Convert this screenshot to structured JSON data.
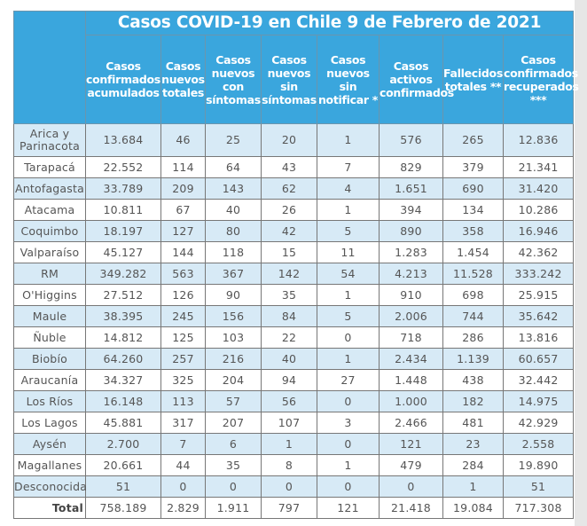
{
  "title": "Casos COVID-19 en Chile 9 de Febrero de 2021",
  "columns": [
    "Casos confirmados acumulados",
    "Casos nuevos totales",
    "Casos nuevos con síntomas",
    "Casos nuevos sin síntomas",
    "Casos nuevos sin notificar *",
    "Casos activos confirmados",
    "Fallecidos totales **",
    "Casos confirmados recuperados ***"
  ],
  "rows": [
    {
      "region": "Arica y Parinacota",
      "values": [
        "13.684",
        "46",
        "25",
        "20",
        "1",
        "576",
        "265",
        "12.836"
      ]
    },
    {
      "region": "Tarapacá",
      "values": [
        "22.552",
        "114",
        "64",
        "43",
        "7",
        "829",
        "379",
        "21.341"
      ]
    },
    {
      "region": "Antofagasta",
      "values": [
        "33.789",
        "209",
        "143",
        "62",
        "4",
        "1.651",
        "690",
        "31.420"
      ]
    },
    {
      "region": "Atacama",
      "values": [
        "10.811",
        "67",
        "40",
        "26",
        "1",
        "394",
        "134",
        "10.286"
      ]
    },
    {
      "region": "Coquimbo",
      "values": [
        "18.197",
        "127",
        "80",
        "42",
        "5",
        "890",
        "358",
        "16.946"
      ]
    },
    {
      "region": "Valparaíso",
      "values": [
        "45.127",
        "144",
        "118",
        "15",
        "11",
        "1.283",
        "1.454",
        "42.362"
      ]
    },
    {
      "region": "RM",
      "values": [
        "349.282",
        "563",
        "367",
        "142",
        "54",
        "4.213",
        "11.528",
        "333.242"
      ]
    },
    {
      "region": "O'Higgins",
      "values": [
        "27.512",
        "126",
        "90",
        "35",
        "1",
        "910",
        "698",
        "25.915"
      ]
    },
    {
      "region": "Maule",
      "values": [
        "38.395",
        "245",
        "156",
        "84",
        "5",
        "2.006",
        "744",
        "35.642"
      ]
    },
    {
      "region": "Ñuble",
      "values": [
        "14.812",
        "125",
        "103",
        "22",
        "0",
        "718",
        "286",
        "13.816"
      ]
    },
    {
      "region": "Biobío",
      "values": [
        "64.260",
        "257",
        "216",
        "40",
        "1",
        "2.434",
        "1.139",
        "60.657"
      ]
    },
    {
      "region": "Araucanía",
      "values": [
        "34.327",
        "325",
        "204",
        "94",
        "27",
        "1.448",
        "438",
        "32.442"
      ]
    },
    {
      "region": "Los Ríos",
      "values": [
        "16.148",
        "113",
        "57",
        "56",
        "0",
        "1.000",
        "182",
        "14.975"
      ]
    },
    {
      "region": "Los Lagos",
      "values": [
        "45.881",
        "317",
        "207",
        "107",
        "3",
        "2.466",
        "481",
        "42.929"
      ]
    },
    {
      "region": "Aysén",
      "values": [
        "2.700",
        "7",
        "6",
        "1",
        "0",
        "121",
        "23",
        "2.558"
      ]
    },
    {
      "region": "Magallanes",
      "values": [
        "20.661",
        "44",
        "35",
        "8",
        "1",
        "479",
        "284",
        "19.890"
      ]
    },
    {
      "region": "Desconocida",
      "values": [
        "51",
        "0",
        "0",
        "0",
        "0",
        "0",
        "1",
        "51"
      ]
    }
  ],
  "total": {
    "label": "Total",
    "values": [
      "758.189",
      "2.829",
      "1.911",
      "797",
      "121",
      "21.418",
      "19.084",
      "717.308"
    ]
  },
  "colors": {
    "header_bg": "#3aa6dd",
    "stripe": "#d7eaf6",
    "text": "#555555"
  }
}
